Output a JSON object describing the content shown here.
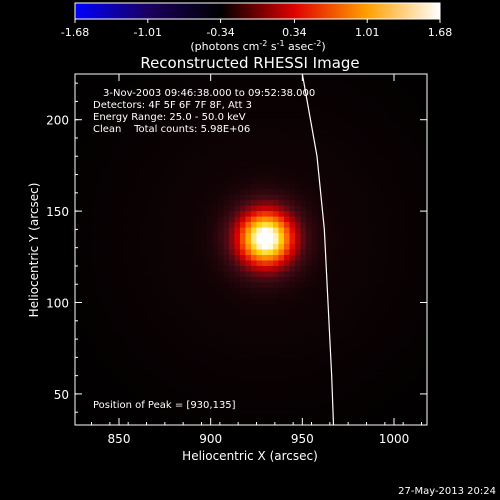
{
  "chart_data": {
    "type": "heatmap",
    "title": "Reconstructed RHESSI Image",
    "xlabel": "Heliocentric X (arcsec)",
    "ylabel": "Heliocentric Y (arcsec)",
    "xlim": [
      826,
      1018
    ],
    "ylim": [
      33,
      225
    ],
    "x_ticks": [
      850,
      900,
      950,
      1000
    ],
    "y_ticks": [
      50,
      100,
      150,
      200
    ],
    "colorbar": {
      "range": [
        -1.68,
        1.68
      ],
      "ticks": [
        "-1.68",
        "-1.01",
        "-0.34",
        "0.34",
        "1.01",
        "1.68"
      ],
      "unit_text": "(photons cm",
      "unit_sup1": "-2",
      "unit_mid": " s",
      "unit_sup2": "-1",
      "unit_end": " asec",
      "unit_sup3": "-2",
      "unit_close": ")",
      "colors": [
        "#0000ff",
        "#1a0060",
        "#000000",
        "#e00000",
        "#ffa000",
        "#ffffff"
      ]
    },
    "source": {
      "x": 930,
      "y": 135,
      "peak": 1.68,
      "sigma": 12
    },
    "halo": {
      "x": 930,
      "y": 135,
      "amp": 0.07,
      "sigma": 60
    },
    "limb": {
      "points": [
        [
          950,
          225
        ],
        [
          958,
          180
        ],
        [
          962,
          140
        ],
        [
          964,
          100
        ],
        [
          966,
          60
        ],
        [
          967,
          33
        ]
      ]
    },
    "annotations": {
      "time": "3-Nov-2003 09:46:38.000 to 09:52:38.000",
      "detectors": "Detectors: 4F 5F 6F 7F 8F, Att 3",
      "energy": "Energy Range: 25.0 - 50.0 keV",
      "clean": "Clean    Total counts: 5.98E+06",
      "peak": "Position of Peak = [930,135]"
    },
    "footer_date": "27-May-2013 20:24"
  }
}
